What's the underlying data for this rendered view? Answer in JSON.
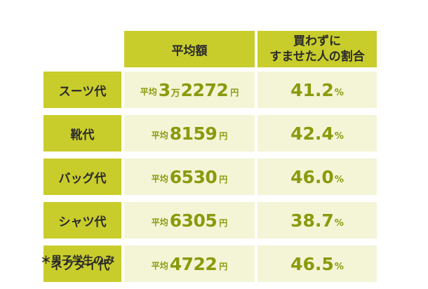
{
  "chart_data": {
    "type": "table",
    "columns": [
      "平均額",
      "買わずに",
      "すませた人の割合"
    ],
    "rows": [
      {
        "label": "スーツ代",
        "avg_prefix": "平均",
        "avg_man": "3",
        "avg_man_unit": "万",
        "avg_value": "2272",
        "avg_unit": "円",
        "pct": "41.2",
        "pct_unit": "%"
      },
      {
        "label": "靴代",
        "avg_prefix": "平均",
        "avg_man": "",
        "avg_man_unit": "",
        "avg_value": "8159",
        "avg_unit": "円",
        "pct": "42.4",
        "pct_unit": "%"
      },
      {
        "label": "バッグ代",
        "avg_prefix": "平均",
        "avg_man": "",
        "avg_man_unit": "",
        "avg_value": "6530",
        "avg_unit": "円",
        "pct": "46.0",
        "pct_unit": "%"
      },
      {
        "label": "シャツ代",
        "avg_prefix": "平均",
        "avg_man": "",
        "avg_man_unit": "",
        "avg_value": "6305",
        "avg_unit": "円",
        "pct": "38.7",
        "pct_unit": "%"
      },
      {
        "label": "ネクタイ代",
        "label_mark": "*",
        "avg_prefix": "平均",
        "avg_man": "",
        "avg_man_unit": "",
        "avg_value": "4722",
        "avg_unit": "円",
        "pct": "46.5",
        "pct_unit": "%"
      }
    ],
    "footnote": "＊男子学生のみ"
  },
  "colors": {
    "header_bg": "#c9cd2b",
    "cell_bg": "#f3f5d6",
    "value_text": "#8a9a0c",
    "label_text": "#2a2a2a"
  }
}
